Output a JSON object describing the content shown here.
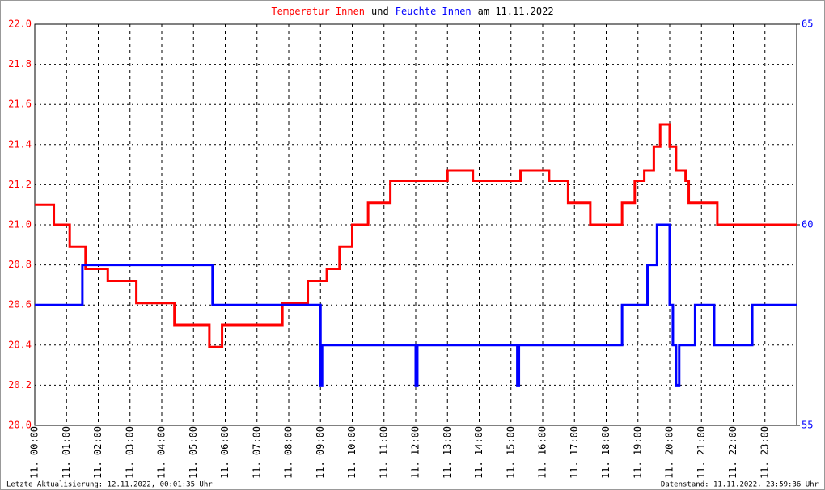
{
  "chart_data": {
    "type": "line",
    "title_parts": [
      {
        "text": "Temperatur Innen",
        "color": "#ff0000"
      },
      {
        "text": "und",
        "color": "#000000"
      },
      {
        "text": "Feuchte Innen",
        "color": "#0000ff"
      },
      {
        "text": "am 11.11.2022",
        "color": "#000000"
      }
    ],
    "footer_left": "Letzte Aktualisierung: 12.11.2022, 00:01:35 Uhr",
    "footer_right": "Datenstand: 11.11.2022, 23:59:36 Uhr",
    "xlim": [
      0,
      24
    ],
    "xticks": [
      {
        "value": 0,
        "label": "11. 00:00"
      },
      {
        "value": 1,
        "label": "11. 01:00"
      },
      {
        "value": 2,
        "label": "11. 02:00"
      },
      {
        "value": 3,
        "label": "11. 03:00"
      },
      {
        "value": 4,
        "label": "11. 04:00"
      },
      {
        "value": 5,
        "label": "11. 05:00"
      },
      {
        "value": 6,
        "label": "11. 06:00"
      },
      {
        "value": 7,
        "label": "11. 07:00"
      },
      {
        "value": 8,
        "label": "11. 08:00"
      },
      {
        "value": 9,
        "label": "11. 09:00"
      },
      {
        "value": 10,
        "label": "11. 10:00"
      },
      {
        "value": 11,
        "label": "11. 11:00"
      },
      {
        "value": 12,
        "label": "11. 12:00"
      },
      {
        "value": 13,
        "label": "11. 13:00"
      },
      {
        "value": 14,
        "label": "11. 14:00"
      },
      {
        "value": 15,
        "label": "11. 15:00"
      },
      {
        "value": 16,
        "label": "11. 16:00"
      },
      {
        "value": 17,
        "label": "11. 17:00"
      },
      {
        "value": 18,
        "label": "11. 18:00"
      },
      {
        "value": 19,
        "label": "11. 19:00"
      },
      {
        "value": 20,
        "label": "11. 20:00"
      },
      {
        "value": 21,
        "label": "11. 21:00"
      },
      {
        "value": 22,
        "label": "11. 22:00"
      },
      {
        "value": 23,
        "label": "11. 23:00"
      }
    ],
    "ylim": [
      20,
      22
    ],
    "yticks": [
      {
        "value": 20,
        "label": "20.0"
      },
      20.2,
      20.4,
      20.6,
      20.8,
      {
        "value": 21,
        "label": "21.0"
      },
      21.2,
      21.4,
      21.6,
      21.8,
      {
        "value": 22,
        "label": "22.0"
      }
    ],
    "y2lim": [
      55,
      65
    ],
    "y2ticks": [
      55,
      60,
      65
    ],
    "grid": true,
    "ytick_color": "#ff0000",
    "y2tick_color": "#0000ff",
    "series": [
      {
        "name": "Temperatur Innen",
        "color": "#ff0000",
        "x": [
          0,
          0.6,
          0.6,
          1.1,
          1.1,
          1.6,
          1.6,
          2.3,
          2.3,
          3.2,
          3.2,
          4.4,
          4.4,
          5.5,
          5.5,
          5.9,
          5.9,
          7.8,
          7.8,
          8.6,
          8.6,
          9.2,
          9.2,
          9.6,
          9.6,
          10,
          10,
          10.5,
          10.5,
          11.2,
          11.2,
          13,
          13,
          13.8,
          13.8,
          15.3,
          15.3,
          16.2,
          16.2,
          16.8,
          16.8,
          17.5,
          17.5,
          18.5,
          18.5,
          18.9,
          18.9,
          19.2,
          19.2,
          19.5,
          19.5,
          19.7,
          19.7,
          20,
          20,
          20.2,
          20.2,
          20.5,
          20.5,
          20.6,
          20.6,
          21.5,
          21.5,
          24
        ],
        "values": [
          21.1,
          21.1,
          21,
          21,
          20.89,
          20.89,
          20.78,
          20.78,
          20.72,
          20.72,
          20.61,
          20.61,
          20.5,
          20.5,
          20.39,
          20.39,
          20.5,
          20.5,
          20.61,
          20.61,
          20.72,
          20.72,
          20.78,
          20.78,
          20.89,
          20.89,
          21,
          21,
          21.11,
          21.11,
          21.22,
          21.22,
          21.27,
          21.27,
          21.22,
          21.22,
          21.27,
          21.27,
          21.22,
          21.22,
          21.11,
          21.11,
          21,
          21,
          21.11,
          21.11,
          21.22,
          21.22,
          21.27,
          21.27,
          21.39,
          21.39,
          21.5,
          21.5,
          21.39,
          21.39,
          21.27,
          21.27,
          21.22,
          21.22,
          21.11,
          21.11,
          21,
          21
        ]
      },
      {
        "name": "Feuchte Innen",
        "color": "#0000ff",
        "axis": "y2",
        "x": [
          0,
          1.5,
          1.5,
          5.6,
          5.6,
          9,
          9,
          9.05,
          9.05,
          12,
          12,
          12.05,
          12.05,
          15.2,
          15.2,
          15.25,
          15.25,
          18.5,
          18.5,
          19.3,
          19.3,
          19.6,
          19.6,
          20,
          20,
          20.1,
          20.1,
          20.2,
          20.2,
          20.3,
          20.3,
          20.8,
          20.8,
          21.4,
          21.4,
          22.6,
          22.6,
          24
        ],
        "values": [
          58,
          58,
          59,
          59,
          58,
          58,
          56,
          56,
          57,
          57,
          56,
          56,
          57,
          57,
          56,
          56,
          57,
          57,
          58,
          58,
          59,
          59,
          60,
          60,
          58,
          58,
          57,
          57,
          56,
          56,
          57,
          57,
          58,
          58,
          57,
          57,
          58,
          58
        ]
      }
    ]
  }
}
